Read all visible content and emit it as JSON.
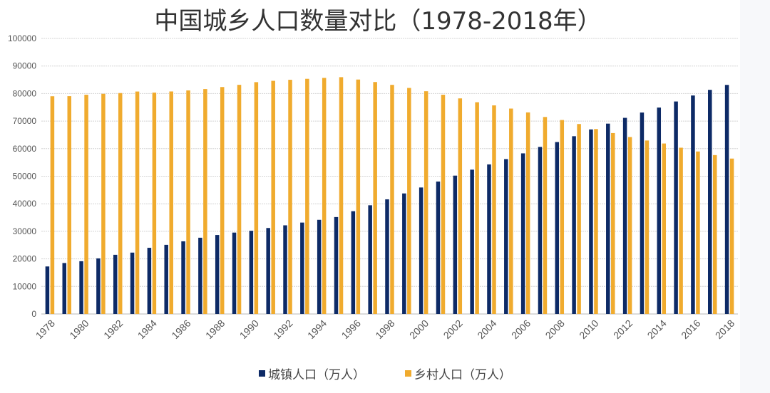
{
  "chart_data": {
    "type": "bar",
    "title": "中国城乡人口数量对比（1978-2018年）",
    "xlabel": "",
    "ylabel": "",
    "ylim": [
      0,
      100000
    ],
    "yticks": [
      "0",
      "10000",
      "20000",
      "30000",
      "40000",
      "50000",
      "60000",
      "70000",
      "80000",
      "90000",
      "100000"
    ],
    "grid": true,
    "legend_position": "bottom",
    "categories": [
      1978,
      1979,
      1980,
      1981,
      1982,
      1983,
      1984,
      1985,
      1986,
      1987,
      1988,
      1989,
      1990,
      1991,
      1992,
      1993,
      1994,
      1995,
      1996,
      1997,
      1998,
      1999,
      2000,
      2001,
      2002,
      2003,
      2004,
      2005,
      2006,
      2007,
      2008,
      2009,
      2010,
      2011,
      2012,
      2013,
      2014,
      2015,
      2016,
      2017,
      2018
    ],
    "xtick_labels": [
      "1978",
      "1980",
      "1982",
      "1984",
      "1986",
      "1988",
      "1990",
      "1992",
      "1994",
      "1996",
      "1998",
      "2000",
      "2002",
      "2004",
      "2006",
      "2008",
      "2010",
      "2012",
      "2014",
      "2016",
      "2018"
    ],
    "series": [
      {
        "name": "城镇人口（万人）",
        "color": "#0d2a66",
        "values": [
          17245,
          18495,
          19140,
          20171,
          21480,
          22274,
          24017,
          25094,
          26366,
          27674,
          28661,
          29540,
          30195,
          31203,
          32175,
          33173,
          34169,
          35174,
          37304,
          39449,
          41608,
          43748,
          45906,
          48064,
          50212,
          52376,
          54283,
          56212,
          58288,
          60633,
          62403,
          64512,
          66978,
          69079,
          71182,
          73111,
          74916,
          77116,
          79298,
          81347,
          83137
        ]
      },
      {
        "name": "乡村人口（万人）",
        "color": "#f0ab2e",
        "values": [
          79014,
          79047,
          79565,
          79901,
          80174,
          80734,
          80340,
          80757,
          81141,
          81626,
          82365,
          83164,
          84138,
          84620,
          84996,
          85344,
          85681,
          85947,
          85085,
          84177,
          83153,
          82038,
          80837,
          79563,
          78241,
          76851,
          75705,
          74544,
          73160,
          71496,
          70399,
          68938,
          67113,
          65656,
          64222,
          62961,
          61866,
          60346,
          58973,
          57661,
          56401
        ]
      }
    ]
  }
}
